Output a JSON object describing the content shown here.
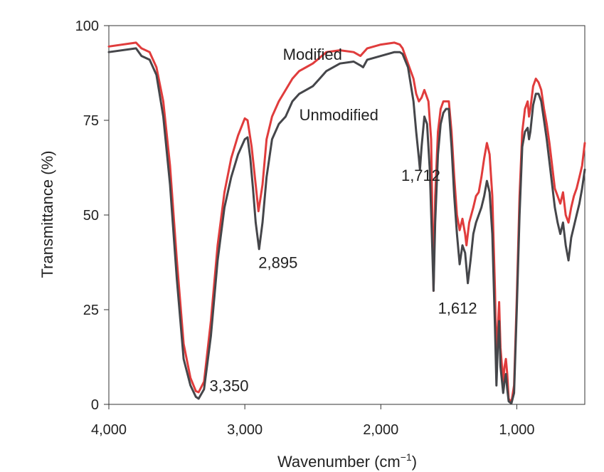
{
  "chart_data": {
    "type": "line",
    "xlabel": "Wavenumber (cm",
    "xlabel_sup": "−1",
    "xlabel_suffix": ")",
    "ylabel": "Transmittance (%)",
    "xlim": [
      4000,
      500
    ],
    "ylim": [
      0,
      100
    ],
    "x_reversed": true,
    "xticks": [
      4000,
      3000,
      2000,
      1000
    ],
    "xtick_labels": [
      "4,000",
      "3,000",
      "2,000",
      "1,000"
    ],
    "yticks": [
      0,
      25,
      50,
      75,
      100
    ],
    "ytick_labels": [
      "0",
      "25",
      "50",
      "75",
      "100"
    ],
    "grid": false,
    "series": [
      {
        "name": "Modified",
        "color": "#e03c3c",
        "points": [
          [
            4000,
            94.5
          ],
          [
            3800,
            95.5
          ],
          [
            3760,
            94
          ],
          [
            3700,
            93
          ],
          [
            3650,
            89
          ],
          [
            3600,
            80
          ],
          [
            3550,
            63
          ],
          [
            3500,
            38
          ],
          [
            3450,
            16
          ],
          [
            3400,
            7
          ],
          [
            3360,
            3.5
          ],
          [
            3340,
            3.2
          ],
          [
            3300,
            6
          ],
          [
            3250,
            22
          ],
          [
            3200,
            42
          ],
          [
            3150,
            56
          ],
          [
            3100,
            65
          ],
          [
            3050,
            71
          ],
          [
            3000,
            75.5
          ],
          [
            2980,
            75
          ],
          [
            2950,
            68
          ],
          [
            2920,
            58
          ],
          [
            2900,
            51
          ],
          [
            2870,
            58
          ],
          [
            2840,
            70
          ],
          [
            2800,
            76
          ],
          [
            2750,
            80
          ],
          [
            2700,
            83
          ],
          [
            2650,
            86
          ],
          [
            2600,
            88
          ],
          [
            2550,
            89
          ],
          [
            2500,
            90
          ],
          [
            2450,
            91.5
          ],
          [
            2400,
            93
          ],
          [
            2300,
            93.5
          ],
          [
            2200,
            93
          ],
          [
            2150,
            92
          ],
          [
            2100,
            94
          ],
          [
            2000,
            95
          ],
          [
            1900,
            95.5
          ],
          [
            1860,
            95
          ],
          [
            1840,
            94
          ],
          [
            1800,
            90
          ],
          [
            1760,
            86
          ],
          [
            1740,
            82
          ],
          [
            1720,
            80
          ],
          [
            1700,
            81
          ],
          [
            1680,
            83
          ],
          [
            1650,
            80
          ],
          [
            1630,
            70
          ],
          [
            1612,
            30
          ],
          [
            1600,
            55
          ],
          [
            1580,
            72
          ],
          [
            1560,
            78
          ],
          [
            1540,
            80
          ],
          [
            1500,
            80
          ],
          [
            1480,
            72
          ],
          [
            1460,
            60
          ],
          [
            1440,
            50
          ],
          [
            1420,
            46
          ],
          [
            1400,
            49
          ],
          [
            1380,
            45
          ],
          [
            1370,
            42
          ],
          [
            1350,
            48
          ],
          [
            1320,
            52
          ],
          [
            1300,
            55
          ],
          [
            1280,
            56
          ],
          [
            1260,
            60
          ],
          [
            1240,
            65
          ],
          [
            1220,
            69
          ],
          [
            1200,
            66
          ],
          [
            1180,
            55
          ],
          [
            1160,
            30
          ],
          [
            1150,
            10
          ],
          [
            1140,
            20
          ],
          [
            1130,
            27
          ],
          [
            1120,
            15
          ],
          [
            1100,
            6
          ],
          [
            1090,
            10
          ],
          [
            1080,
            12
          ],
          [
            1070,
            8
          ],
          [
            1060,
            1.5
          ],
          [
            1040,
            0.5
          ],
          [
            1020,
            5
          ],
          [
            1000,
            28
          ],
          [
            980,
            55
          ],
          [
            960,
            72
          ],
          [
            940,
            78
          ],
          [
            920,
            80
          ],
          [
            910,
            76
          ],
          [
            900,
            78
          ],
          [
            880,
            84
          ],
          [
            860,
            86
          ],
          [
            840,
            85
          ],
          [
            820,
            83
          ],
          [
            800,
            78
          ],
          [
            780,
            74
          ],
          [
            760,
            69
          ],
          [
            740,
            63
          ],
          [
            720,
            57
          ],
          [
            700,
            55
          ],
          [
            680,
            53
          ],
          [
            660,
            56
          ],
          [
            640,
            50
          ],
          [
            620,
            48
          ],
          [
            600,
            52
          ],
          [
            580,
            55
          ],
          [
            560,
            57
          ],
          [
            540,
            60
          ],
          [
            520,
            63
          ],
          [
            500,
            69
          ]
        ]
      },
      {
        "name": "Unmodified",
        "color": "#45464a",
        "points": [
          [
            4000,
            93
          ],
          [
            3800,
            94
          ],
          [
            3760,
            92
          ],
          [
            3700,
            91
          ],
          [
            3650,
            87
          ],
          [
            3600,
            76
          ],
          [
            3550,
            58
          ],
          [
            3500,
            33
          ],
          [
            3450,
            12
          ],
          [
            3400,
            5
          ],
          [
            3360,
            2
          ],
          [
            3340,
            1.5
          ],
          [
            3300,
            4
          ],
          [
            3250,
            18
          ],
          [
            3200,
            38
          ],
          [
            3150,
            52
          ],
          [
            3100,
            60
          ],
          [
            3050,
            66
          ],
          [
            3000,
            70
          ],
          [
            2980,
            70.5
          ],
          [
            2960,
            65
          ],
          [
            2940,
            57
          ],
          [
            2920,
            48
          ],
          [
            2895,
            41
          ],
          [
            2870,
            48
          ],
          [
            2840,
            60
          ],
          [
            2800,
            70
          ],
          [
            2750,
            74
          ],
          [
            2700,
            76
          ],
          [
            2650,
            80
          ],
          [
            2600,
            82
          ],
          [
            2550,
            83
          ],
          [
            2500,
            84
          ],
          [
            2450,
            86
          ],
          [
            2400,
            88
          ],
          [
            2300,
            90
          ],
          [
            2200,
            90.5
          ],
          [
            2150,
            89.5
          ],
          [
            2130,
            89
          ],
          [
            2100,
            91
          ],
          [
            2000,
            92
          ],
          [
            1900,
            93
          ],
          [
            1860,
            93
          ],
          [
            1840,
            92.5
          ],
          [
            1800,
            89
          ],
          [
            1760,
            80
          ],
          [
            1740,
            72
          ],
          [
            1720,
            65
          ],
          [
            1712,
            62
          ],
          [
            1700,
            68
          ],
          [
            1680,
            76
          ],
          [
            1660,
            74
          ],
          [
            1640,
            62
          ],
          [
            1625,
            45
          ],
          [
            1612,
            30
          ],
          [
            1600,
            48
          ],
          [
            1580,
            66
          ],
          [
            1560,
            74
          ],
          [
            1540,
            77
          ],
          [
            1520,
            78
          ],
          [
            1500,
            78
          ],
          [
            1480,
            68
          ],
          [
            1460,
            55
          ],
          [
            1440,
            45
          ],
          [
            1420,
            37
          ],
          [
            1400,
            42
          ],
          [
            1380,
            40
          ],
          [
            1360,
            32
          ],
          [
            1340,
            38
          ],
          [
            1320,
            45
          ],
          [
            1300,
            48
          ],
          [
            1280,
            50
          ],
          [
            1260,
            52
          ],
          [
            1240,
            55
          ],
          [
            1220,
            59
          ],
          [
            1200,
            56
          ],
          [
            1180,
            45
          ],
          [
            1160,
            20
          ],
          [
            1150,
            5
          ],
          [
            1140,
            15
          ],
          [
            1130,
            22
          ],
          [
            1120,
            10
          ],
          [
            1100,
            3
          ],
          [
            1090,
            6
          ],
          [
            1080,
            8
          ],
          [
            1070,
            4
          ],
          [
            1060,
            0.8
          ],
          [
            1040,
            0.2
          ],
          [
            1020,
            3
          ],
          [
            1000,
            25
          ],
          [
            980,
            50
          ],
          [
            960,
            68
          ],
          [
            940,
            72
          ],
          [
            920,
            73
          ],
          [
            910,
            70
          ],
          [
            900,
            72
          ],
          [
            880,
            79
          ],
          [
            860,
            82
          ],
          [
            840,
            82
          ],
          [
            820,
            80
          ],
          [
            800,
            75
          ],
          [
            780,
            70
          ],
          [
            760,
            64
          ],
          [
            740,
            58
          ],
          [
            720,
            52
          ],
          [
            700,
            48
          ],
          [
            680,
            45
          ],
          [
            660,
            48
          ],
          [
            640,
            42
          ],
          [
            620,
            38
          ],
          [
            600,
            44
          ],
          [
            580,
            47
          ],
          [
            560,
            50
          ],
          [
            540,
            53
          ],
          [
            520,
            57
          ],
          [
            500,
            62
          ]
        ]
      }
    ],
    "annotations": [
      {
        "text": "Modified",
        "x": 2720,
        "y": 91
      },
      {
        "text": "Unmodified",
        "x": 2600,
        "y": 75
      },
      {
        "text": "3,350",
        "x": 3260,
        "y": 3.5
      },
      {
        "text": "2,895",
        "x": 2900,
        "y": 36
      },
      {
        "text": "1,712",
        "x": 1850,
        "y": 59
      },
      {
        "text": "1,612",
        "x": 1580,
        "y": 24
      }
    ]
  }
}
